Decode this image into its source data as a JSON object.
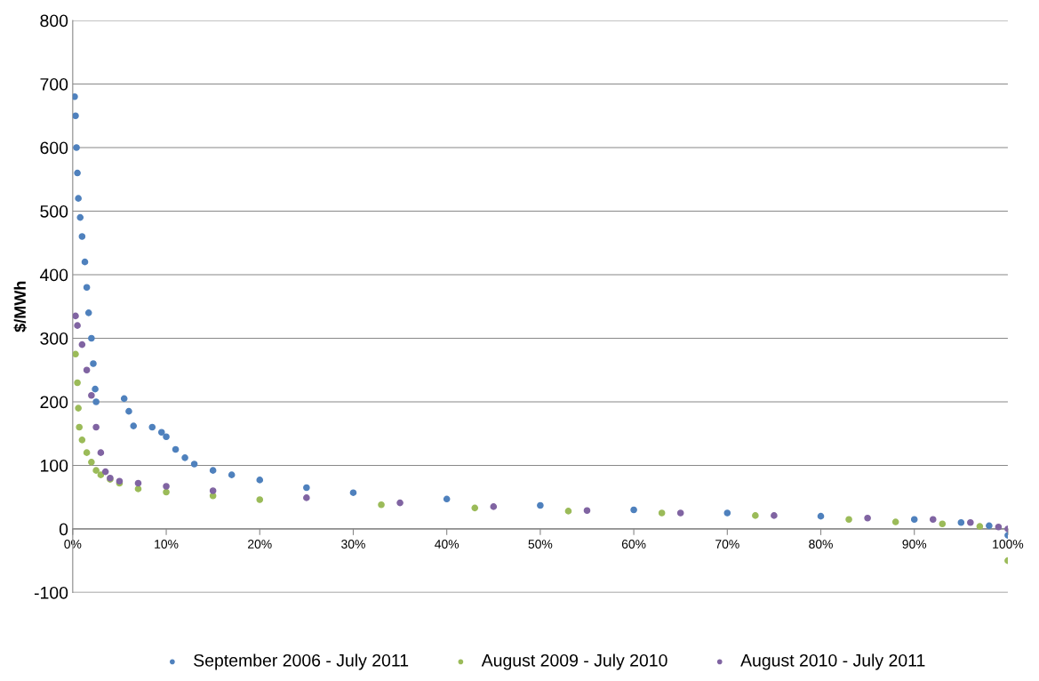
{
  "chart_data": {
    "type": "scatter",
    "ylabel": "$/MWh",
    "xlim": [
      0,
      100
    ],
    "ylim": [
      -100,
      800
    ],
    "xticks": [
      {
        "value": 0,
        "label": "0%"
      },
      {
        "value": 10,
        "label": "10%"
      },
      {
        "value": 20,
        "label": "20%"
      },
      {
        "value": 30,
        "label": "30%"
      },
      {
        "value": 40,
        "label": "40%"
      },
      {
        "value": 50,
        "label": "50%"
      },
      {
        "value": 60,
        "label": "60%"
      },
      {
        "value": 70,
        "label": "70%"
      },
      {
        "value": 80,
        "label": "80%"
      },
      {
        "value": 90,
        "label": "90%"
      },
      {
        "value": 100,
        "label": "100%"
      }
    ],
    "yticks": [
      -100,
      0,
      100,
      200,
      300,
      400,
      500,
      600,
      700,
      800
    ],
    "grid": "y",
    "legend": "bottom",
    "marker": "circle",
    "series": [
      {
        "name": "September 2006 - July 2011",
        "color": "#4f81bd",
        "x": [
          0.2,
          0.3,
          0.4,
          0.5,
          0.6,
          0.8,
          1.0,
          1.3,
          1.5,
          1.7,
          2.0,
          2.2,
          2.4,
          2.5,
          5.5,
          6.0,
          6.5,
          8.5,
          9.5,
          10,
          11,
          12,
          13,
          15,
          17,
          20,
          25,
          30,
          40,
          50,
          60,
          70,
          80,
          90,
          95,
          98,
          100
        ],
        "values": [
          680,
          650,
          600,
          560,
          520,
          490,
          460,
          420,
          380,
          340,
          300,
          260,
          220,
          200,
          205,
          185,
          162,
          160,
          152,
          145,
          125,
          112,
          102,
          92,
          85,
          77,
          65,
          57,
          47,
          37,
          30,
          25,
          20,
          15,
          10,
          5,
          -10
        ]
      },
      {
        "name": "August 2009 - July 2010",
        "color": "#9bbb59",
        "x": [
          0.3,
          0.5,
          0.6,
          0.7,
          1,
          1.5,
          2,
          2.5,
          3,
          4,
          5,
          7,
          10,
          15,
          20,
          33,
          43,
          53,
          63,
          73,
          83,
          88,
          93,
          97,
          100
        ],
        "values": [
          275,
          230,
          190,
          160,
          140,
          120,
          105,
          92,
          85,
          78,
          72,
          63,
          58,
          52,
          46,
          38,
          33,
          28,
          25,
          21,
          15,
          11,
          8,
          4,
          -50
        ]
      },
      {
        "name": "August 2010 - July 2011",
        "color": "#8064a2",
        "x": [
          0.3,
          0.5,
          1,
          1.5,
          2,
          2.5,
          3,
          3.5,
          4,
          5,
          7,
          10,
          15,
          25,
          35,
          45,
          55,
          65,
          75,
          85,
          92,
          96,
          99,
          100
        ],
        "values": [
          335,
          320,
          290,
          250,
          210,
          160,
          120,
          90,
          80,
          75,
          72,
          67,
          60,
          49,
          41,
          35,
          29,
          25,
          21,
          17,
          15,
          10,
          3,
          0
        ]
      }
    ]
  }
}
